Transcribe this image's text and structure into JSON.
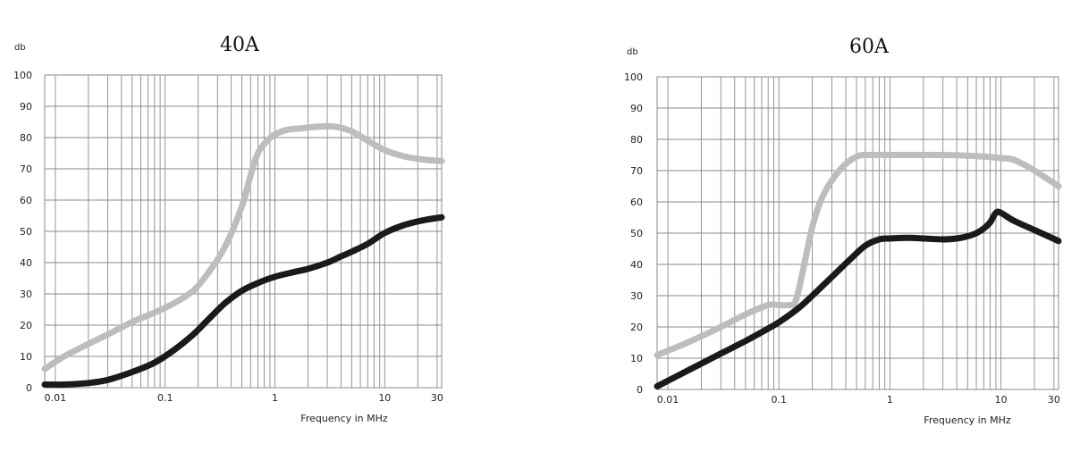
{
  "chart_data": [
    {
      "type": "line",
      "title": "40A",
      "ylabel": "db",
      "xlabel": "Frequency in MHz",
      "x_scale": "log",
      "xlim": [
        0.008,
        33
      ],
      "ylim": [
        0,
        100
      ],
      "grid": true,
      "yticks": [
        0,
        10,
        20,
        30,
        40,
        50,
        60,
        70,
        80,
        90,
        100
      ],
      "xticks": [
        {
          "value": 0.01,
          "label": "0.01"
        },
        {
          "value": 0.1,
          "label": "0.1"
        },
        {
          "value": 1,
          "label": "1"
        },
        {
          "value": 10,
          "label": "10"
        },
        {
          "value": 30,
          "label": "30"
        }
      ],
      "series": [
        {
          "color": "#bdbdbd",
          "x": [
            0.008,
            0.012,
            0.02,
            0.03,
            0.05,
            0.08,
            0.12,
            0.18,
            0.25,
            0.35,
            0.5,
            0.6,
            0.7,
            0.85,
            1.0,
            1.3,
            1.8,
            2.5,
            3.5,
            5,
            7,
            10,
            15,
            22,
            33
          ],
          "y": [
            6,
            10,
            14,
            17,
            21,
            24,
            27,
            31,
            37,
            45,
            58,
            68,
            75,
            79,
            81,
            82.5,
            83,
            83.5,
            83.5,
            82,
            79,
            76,
            74,
            73,
            72.5
          ]
        },
        {
          "color": "#1a1a1a",
          "x": [
            0.008,
            0.012,
            0.02,
            0.03,
            0.05,
            0.08,
            0.12,
            0.18,
            0.25,
            0.35,
            0.5,
            0.7,
            1.0,
            1.5,
            2,
            3,
            4,
            5,
            7,
            10,
            15,
            22,
            33
          ],
          "y": [
            1,
            1,
            1.5,
            2.5,
            5,
            8,
            12,
            17,
            22,
            27,
            31,
            33.5,
            35.5,
            37,
            38,
            40,
            42,
            43.5,
            46,
            49.5,
            52,
            53.5,
            54.5
          ]
        }
      ]
    },
    {
      "type": "line",
      "title": "60A",
      "ylabel": "db",
      "xlabel": "Frequency in MHz",
      "x_scale": "log",
      "xlim": [
        0.008,
        33
      ],
      "ylim": [
        0,
        100
      ],
      "grid": true,
      "yticks": [
        0,
        10,
        20,
        30,
        40,
        50,
        60,
        70,
        80,
        90,
        100
      ],
      "xticks": [
        {
          "value": 0.01,
          "label": "0.01"
        },
        {
          "value": 0.1,
          "label": "0.1"
        },
        {
          "value": 1,
          "label": "1"
        },
        {
          "value": 10,
          "label": "10"
        },
        {
          "value": 30,
          "label": "30"
        }
      ],
      "series": [
        {
          "color": "#bdbdbd",
          "x": [
            0.008,
            0.015,
            0.03,
            0.05,
            0.08,
            0.1,
            0.12,
            0.14,
            0.16,
            0.2,
            0.25,
            0.35,
            0.5,
            0.7,
            1,
            2,
            3,
            5,
            7,
            10,
            13,
            20,
            33
          ],
          "y": [
            11,
            15,
            20,
            24,
            27,
            27,
            27,
            28,
            36,
            52,
            62,
            70,
            74.5,
            75,
            75,
            75,
            75,
            74.8,
            74.5,
            74,
            73.5,
            70,
            65
          ]
        },
        {
          "color": "#1a1a1a",
          "x": [
            0.008,
            0.015,
            0.03,
            0.05,
            0.08,
            0.1,
            0.15,
            0.2,
            0.3,
            0.45,
            0.6,
            0.8,
            1,
            1.5,
            2,
            3,
            4,
            5,
            6,
            7,
            8,
            9,
            10,
            13,
            20,
            33
          ],
          "y": [
            1,
            6,
            11.5,
            15.5,
            19.5,
            21.5,
            26,
            30,
            36,
            42,
            46,
            48,
            48.3,
            48.5,
            48.3,
            48,
            48.3,
            49,
            50,
            51.5,
            53.5,
            56.5,
            56.5,
            54,
            51,
            47.5
          ]
        }
      ]
    }
  ]
}
